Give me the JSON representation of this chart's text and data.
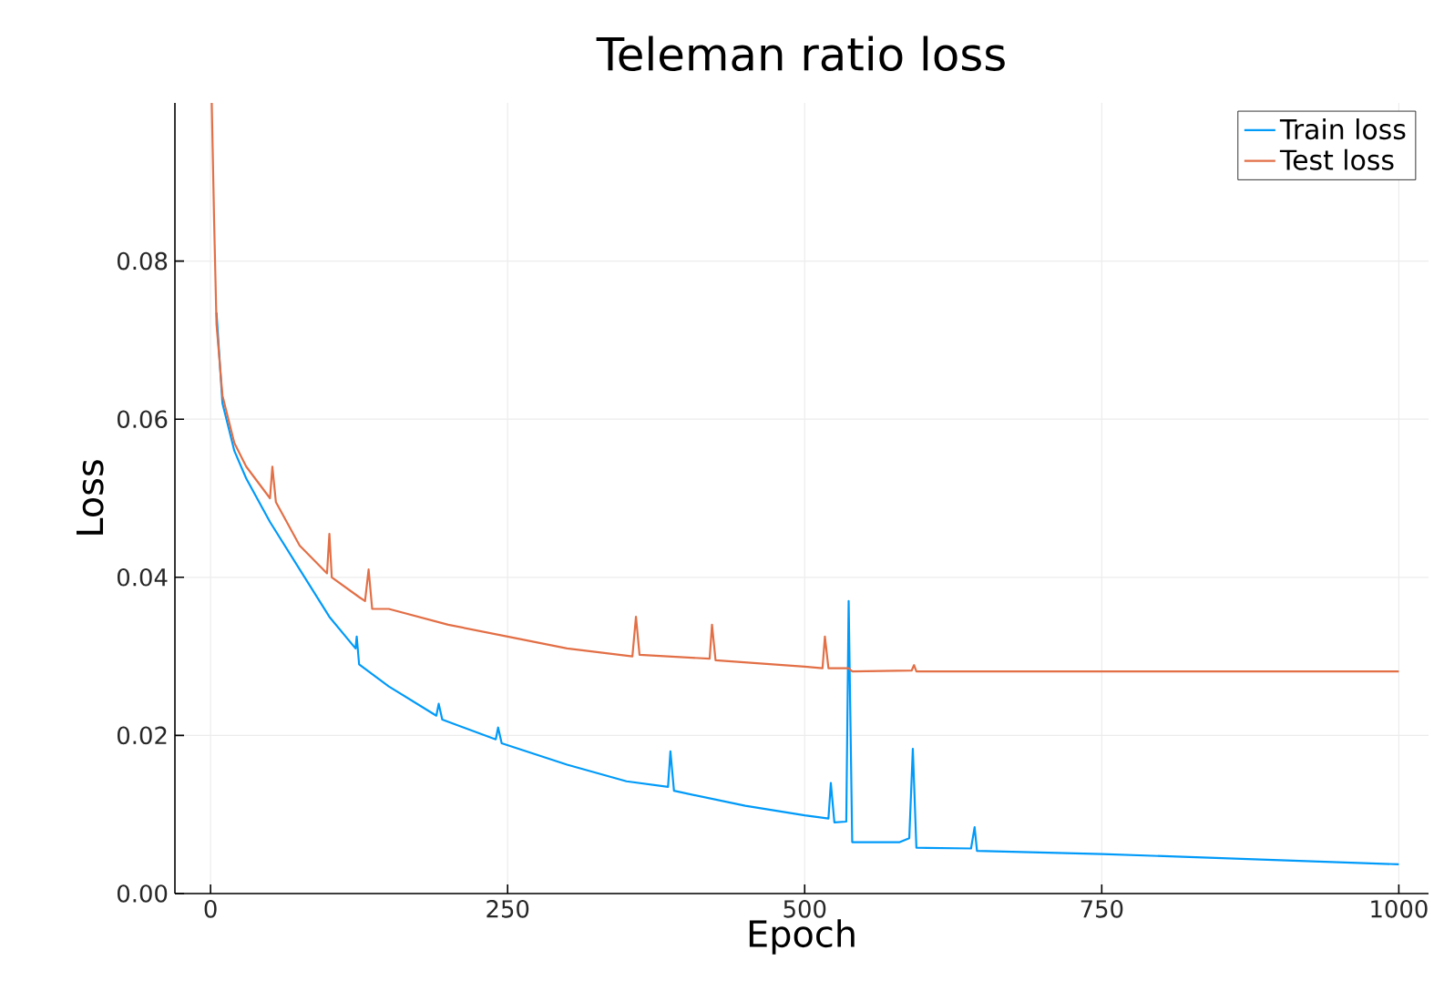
{
  "chart_data": {
    "type": "line",
    "title": "Teleman ratio loss",
    "xlabel": "Epoch",
    "ylabel": "Loss",
    "xlim": [
      -30,
      1025
    ],
    "ylim": [
      0,
      0.1
    ],
    "xticks": [
      0,
      250,
      500,
      750,
      1000
    ],
    "yticks": [
      {
        "value": 0,
        "label": "0.00"
      },
      {
        "value": 0.02,
        "label": "0.02"
      },
      {
        "value": 0.04,
        "label": "0.04"
      },
      {
        "value": 0.06,
        "label": "0.06"
      },
      {
        "value": 0.08,
        "label": "0.08"
      }
    ],
    "grid": true,
    "legend": "top right",
    "series": [
      {
        "name": "Train loss",
        "color": "#009af9",
        "x": [
          5,
          10,
          20,
          30,
          50,
          75,
          100,
          122,
          123,
          125,
          150,
          190,
          192,
          195,
          240,
          242,
          245,
          300,
          350,
          385,
          387,
          390,
          450,
          500,
          520,
          522,
          525,
          535,
          537,
          540,
          580,
          588,
          591,
          594,
          640,
          643,
          645,
          750,
          1000
        ],
        "values": [
          0.0735,
          0.062,
          0.056,
          0.0525,
          0.047,
          0.041,
          0.035,
          0.031,
          0.0325,
          0.029,
          0.0262,
          0.0225,
          0.024,
          0.022,
          0.0195,
          0.021,
          0.019,
          0.0163,
          0.0142,
          0.0135,
          0.018,
          0.013,
          0.0111,
          0.0099,
          0.0095,
          0.014,
          0.009,
          0.0091,
          0.037,
          0.0065,
          0.0065,
          0.007,
          0.0183,
          0.0058,
          0.0057,
          0.0084,
          0.0054,
          0.005,
          0.0037
        ]
      },
      {
        "name": "Test loss",
        "color": "#e26f46",
        "x": [
          1,
          3,
          5,
          10,
          20,
          30,
          50,
          52,
          55,
          75,
          98,
          100,
          102,
          125,
          130,
          133,
          136,
          150,
          200,
          250,
          300,
          355,
          358,
          361,
          420,
          422,
          425,
          500,
          515,
          517,
          520,
          537,
          540,
          590,
          592,
          594,
          1000
        ],
        "values": [
          0.1,
          0.085,
          0.072,
          0.063,
          0.057,
          0.054,
          0.05,
          0.054,
          0.0495,
          0.044,
          0.0405,
          0.0455,
          0.04,
          0.0375,
          0.037,
          0.041,
          0.036,
          0.036,
          0.034,
          0.0325,
          0.031,
          0.03,
          0.035,
          0.0302,
          0.0297,
          0.034,
          0.0295,
          0.0287,
          0.0285,
          0.0325,
          0.0285,
          0.0285,
          0.0281,
          0.0282,
          0.0289,
          0.0281,
          0.0281
        ]
      }
    ]
  }
}
